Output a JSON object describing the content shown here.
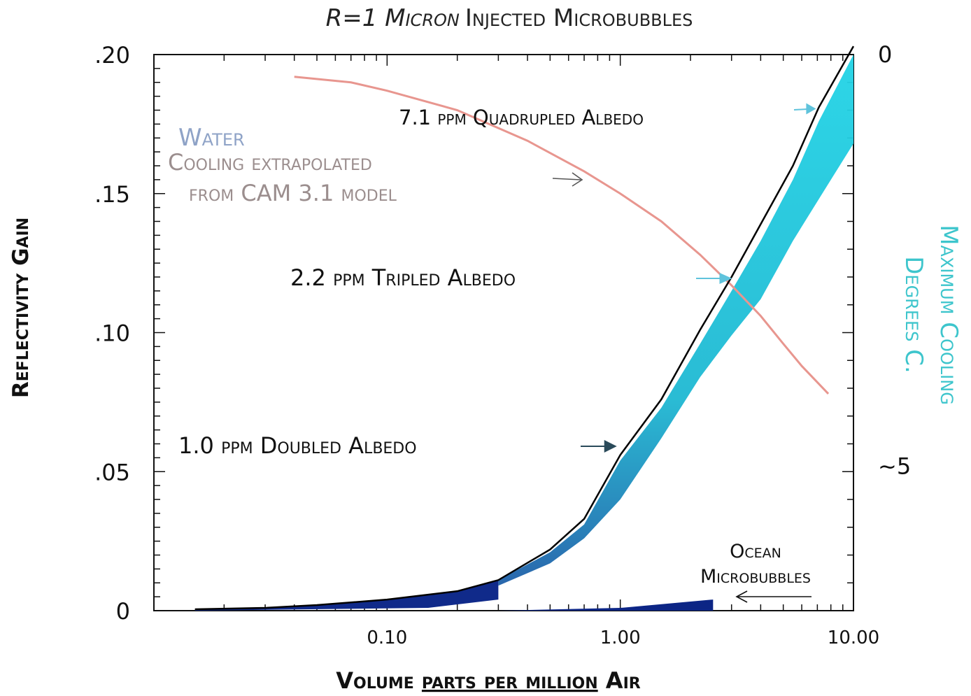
{
  "chart_data": {
    "type": "line",
    "title": "R=1 Micron Injected Microbubbles",
    "title_parts": {
      "italic": "R=1 Micron",
      "rest": "Injected Microbubbles"
    },
    "xlabel": "Volume Parts per Million Air",
    "xlabel_parts": {
      "before": "Volume ",
      "underlined": "parts per million",
      "after": " Air"
    },
    "ylabel": "Reflectivity Gain",
    "y2label_line1": "Maximum Cooling",
    "y2label_line2": "Degrees C.",
    "x_scale": "log",
    "xlim": [
      0.01,
      10
    ],
    "ylim": [
      0,
      0.2
    ],
    "x_ticks": [
      {
        "value": 0.1,
        "label": "0.10"
      },
      {
        "value": 1,
        "label": "1.00"
      },
      {
        "value": 10,
        "label": "10.00"
      }
    ],
    "y_ticks": [
      {
        "value": 0,
        "label": "0"
      },
      {
        "value": 0.05,
        "label": ".05"
      },
      {
        "value": 0.1,
        "label": ".10"
      },
      {
        "value": 0.15,
        "label": ".15"
      },
      {
        "value": 0.2,
        "label": ".20"
      }
    ],
    "y2_ticks": [
      {
        "value": 0.2,
        "label": "0"
      },
      {
        "value": 0.052,
        "label": "~5"
      }
    ],
    "series": [
      {
        "key": "reflectivity",
        "color": "#000000",
        "points": [
          [
            0.015,
            0.0005
          ],
          [
            0.03,
            0.001
          ],
          [
            0.05,
            0.002
          ],
          [
            0.1,
            0.004
          ],
          [
            0.2,
            0.007
          ],
          [
            0.3,
            0.011
          ],
          [
            0.5,
            0.022
          ],
          [
            0.7,
            0.033
          ],
          [
            1.0,
            0.056
          ],
          [
            1.5,
            0.076
          ],
          [
            2.2,
            0.101
          ],
          [
            3.0,
            0.12
          ],
          [
            4.0,
            0.139
          ],
          [
            5.5,
            0.16
          ],
          [
            7.1,
            0.181
          ],
          [
            10.0,
            0.203
          ]
        ]
      },
      {
        "key": "cooling",
        "color": "#e8968f",
        "points": [
          [
            0.04,
            0.192
          ],
          [
            0.07,
            0.19
          ],
          [
            0.1,
            0.187
          ],
          [
            0.2,
            0.18
          ],
          [
            0.4,
            0.169
          ],
          [
            0.7,
            0.158
          ],
          [
            1.0,
            0.15
          ],
          [
            1.5,
            0.14
          ],
          [
            2.2,
            0.128
          ],
          [
            3.0,
            0.117
          ],
          [
            4.0,
            0.106
          ],
          [
            5.0,
            0.096
          ],
          [
            6.0,
            0.088
          ],
          [
            7.8,
            0.078
          ]
        ]
      },
      {
        "key": "cooling-band",
        "color": "#22d4e6",
        "lower": [
          [
            0.3,
            0.009
          ],
          [
            0.5,
            0.017
          ],
          [
            0.7,
            0.026
          ],
          [
            1.0,
            0.04
          ],
          [
            1.5,
            0.062
          ],
          [
            2.2,
            0.084
          ],
          [
            3.0,
            0.099
          ],
          [
            4.0,
            0.112
          ],
          [
            5.5,
            0.133
          ],
          [
            7.1,
            0.148
          ],
          [
            10.0,
            0.168
          ]
        ],
        "upper": [
          [
            0.3,
            0.011
          ],
          [
            0.5,
            0.021
          ],
          [
            0.7,
            0.031
          ],
          [
            1.0,
            0.054
          ],
          [
            1.5,
            0.073
          ],
          [
            2.2,
            0.096
          ],
          [
            3.0,
            0.115
          ],
          [
            4.0,
            0.133
          ],
          [
            5.5,
            0.155
          ],
          [
            7.1,
            0.176
          ],
          [
            10.0,
            0.2
          ]
        ]
      },
      {
        "key": "ocean-microbubbles",
        "color": "#0c2585",
        "points": [
          [
            0.3,
            0.0
          ],
          [
            1.0,
            0.001
          ],
          [
            2.5,
            0.004
          ]
        ]
      }
    ],
    "annotations": [
      {
        "key": "quadrupled",
        "text": "7.1 ppm Quadrupled Albedo",
        "x": 7.1,
        "y": 0.181
      },
      {
        "key": "tripled",
        "text": "2.2 ppm Tripled Albedo",
        "x": 3.1,
        "y": 0.12
      },
      {
        "key": "doubled",
        "text": "1.0 ppm Doubled Albedo",
        "x": 1.05,
        "y": 0.057
      },
      {
        "key": "ocean",
        "text_line1": "Ocean",
        "text_line2": "Microbubbles",
        "x": 2.5,
        "y": 0.004
      }
    ],
    "water_label": "Water",
    "cooling_note_line1": "Cooling extrapolated",
    "cooling_note_line2": "from CAM 3.1 model",
    "colors": {
      "water": "#8fa3c7",
      "note": "#9b8e8e",
      "y2_axis": "#3dc5cc",
      "cyan_arrow": "#5fc3dc"
    }
  }
}
